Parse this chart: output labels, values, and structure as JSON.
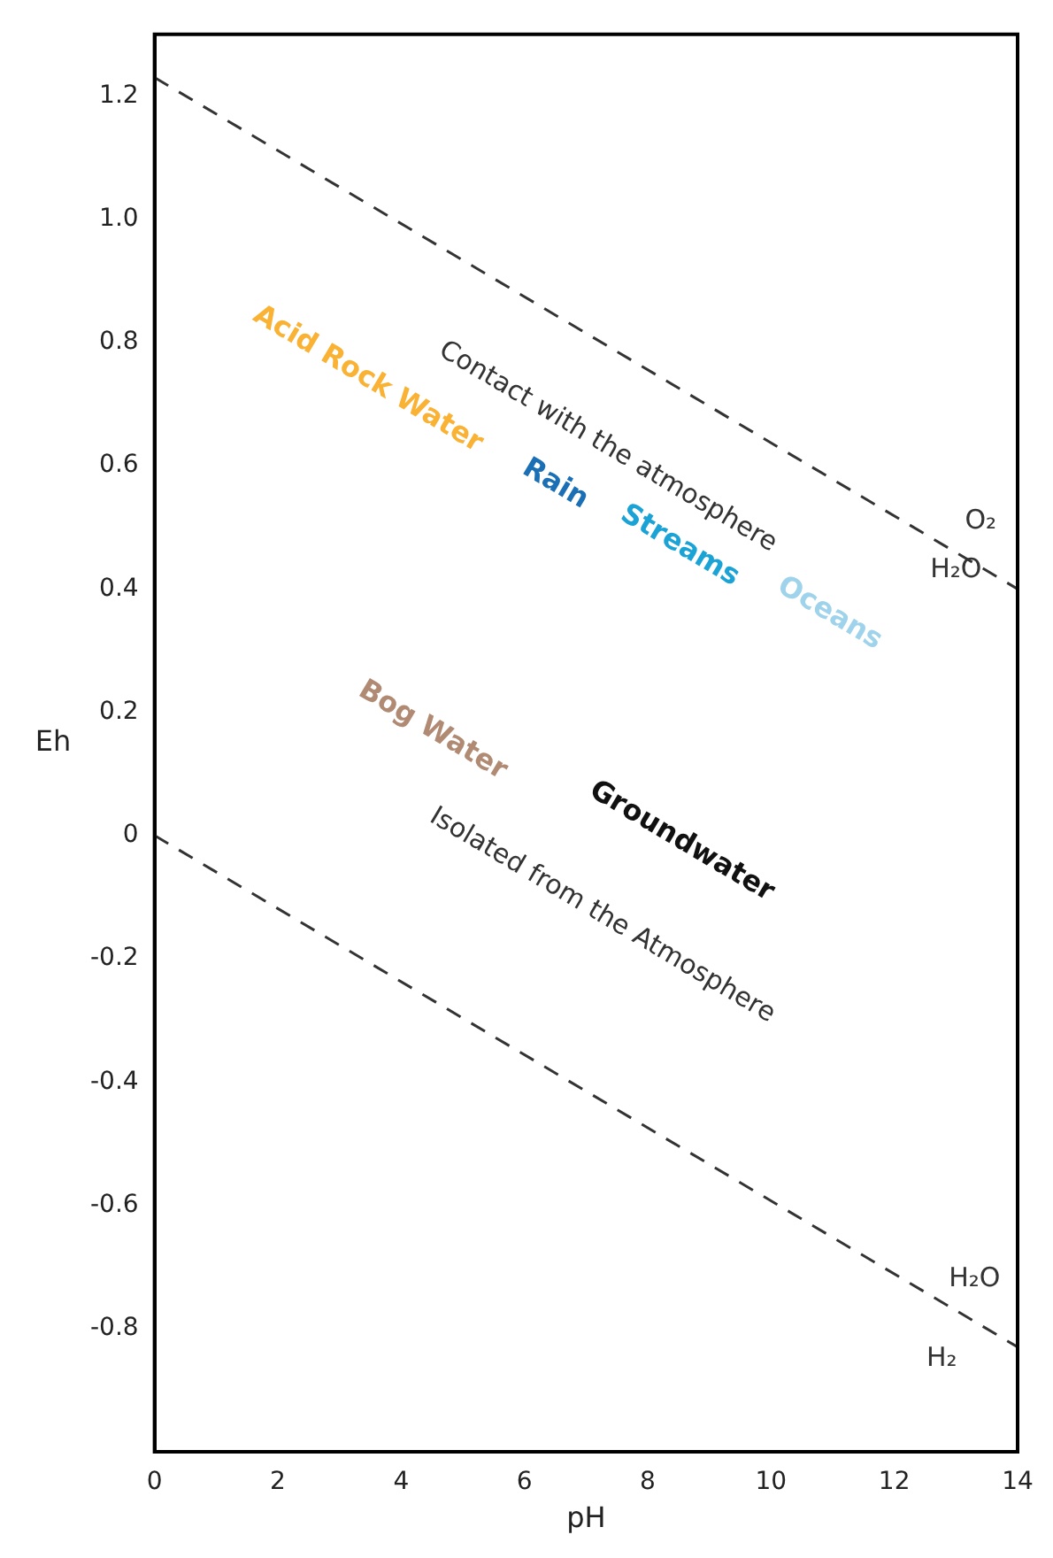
{
  "chart_data": {
    "type": "line",
    "xlabel": "pH",
    "ylabel": "Eh",
    "xlim": [
      0,
      14
    ],
    "xticks": [
      0,
      2,
      4,
      6,
      8,
      10,
      12,
      14
    ],
    "ylim": [
      -1.0,
      1.3
    ],
    "yticks": [
      -0.8,
      -0.6,
      -0.4,
      -0.2,
      0,
      0.2,
      0.4,
      0.6,
      0.8,
      {
        "value": 1.0,
        "label": "1.0"
      },
      1.2
    ],
    "line_style": "dashed",
    "marker": "none",
    "x": [
      0,
      14
    ],
    "series": [
      {
        "values": [
          1.23,
          0.4
        ],
        "color": "#333333"
      },
      {
        "values": [
          0,
          -0.83
        ],
        "color": "#333333"
      }
    ],
    "annotations": [
      "Acid Rock Water",
      "Contact with the atmosphere",
      "Rain",
      "Streams",
      "Oceans",
      "Bog Water",
      "Groundwater",
      "Isolated from the Atmosphere",
      "O₂",
      "H₂O",
      "H₂O",
      "H₂"
    ]
  }
}
